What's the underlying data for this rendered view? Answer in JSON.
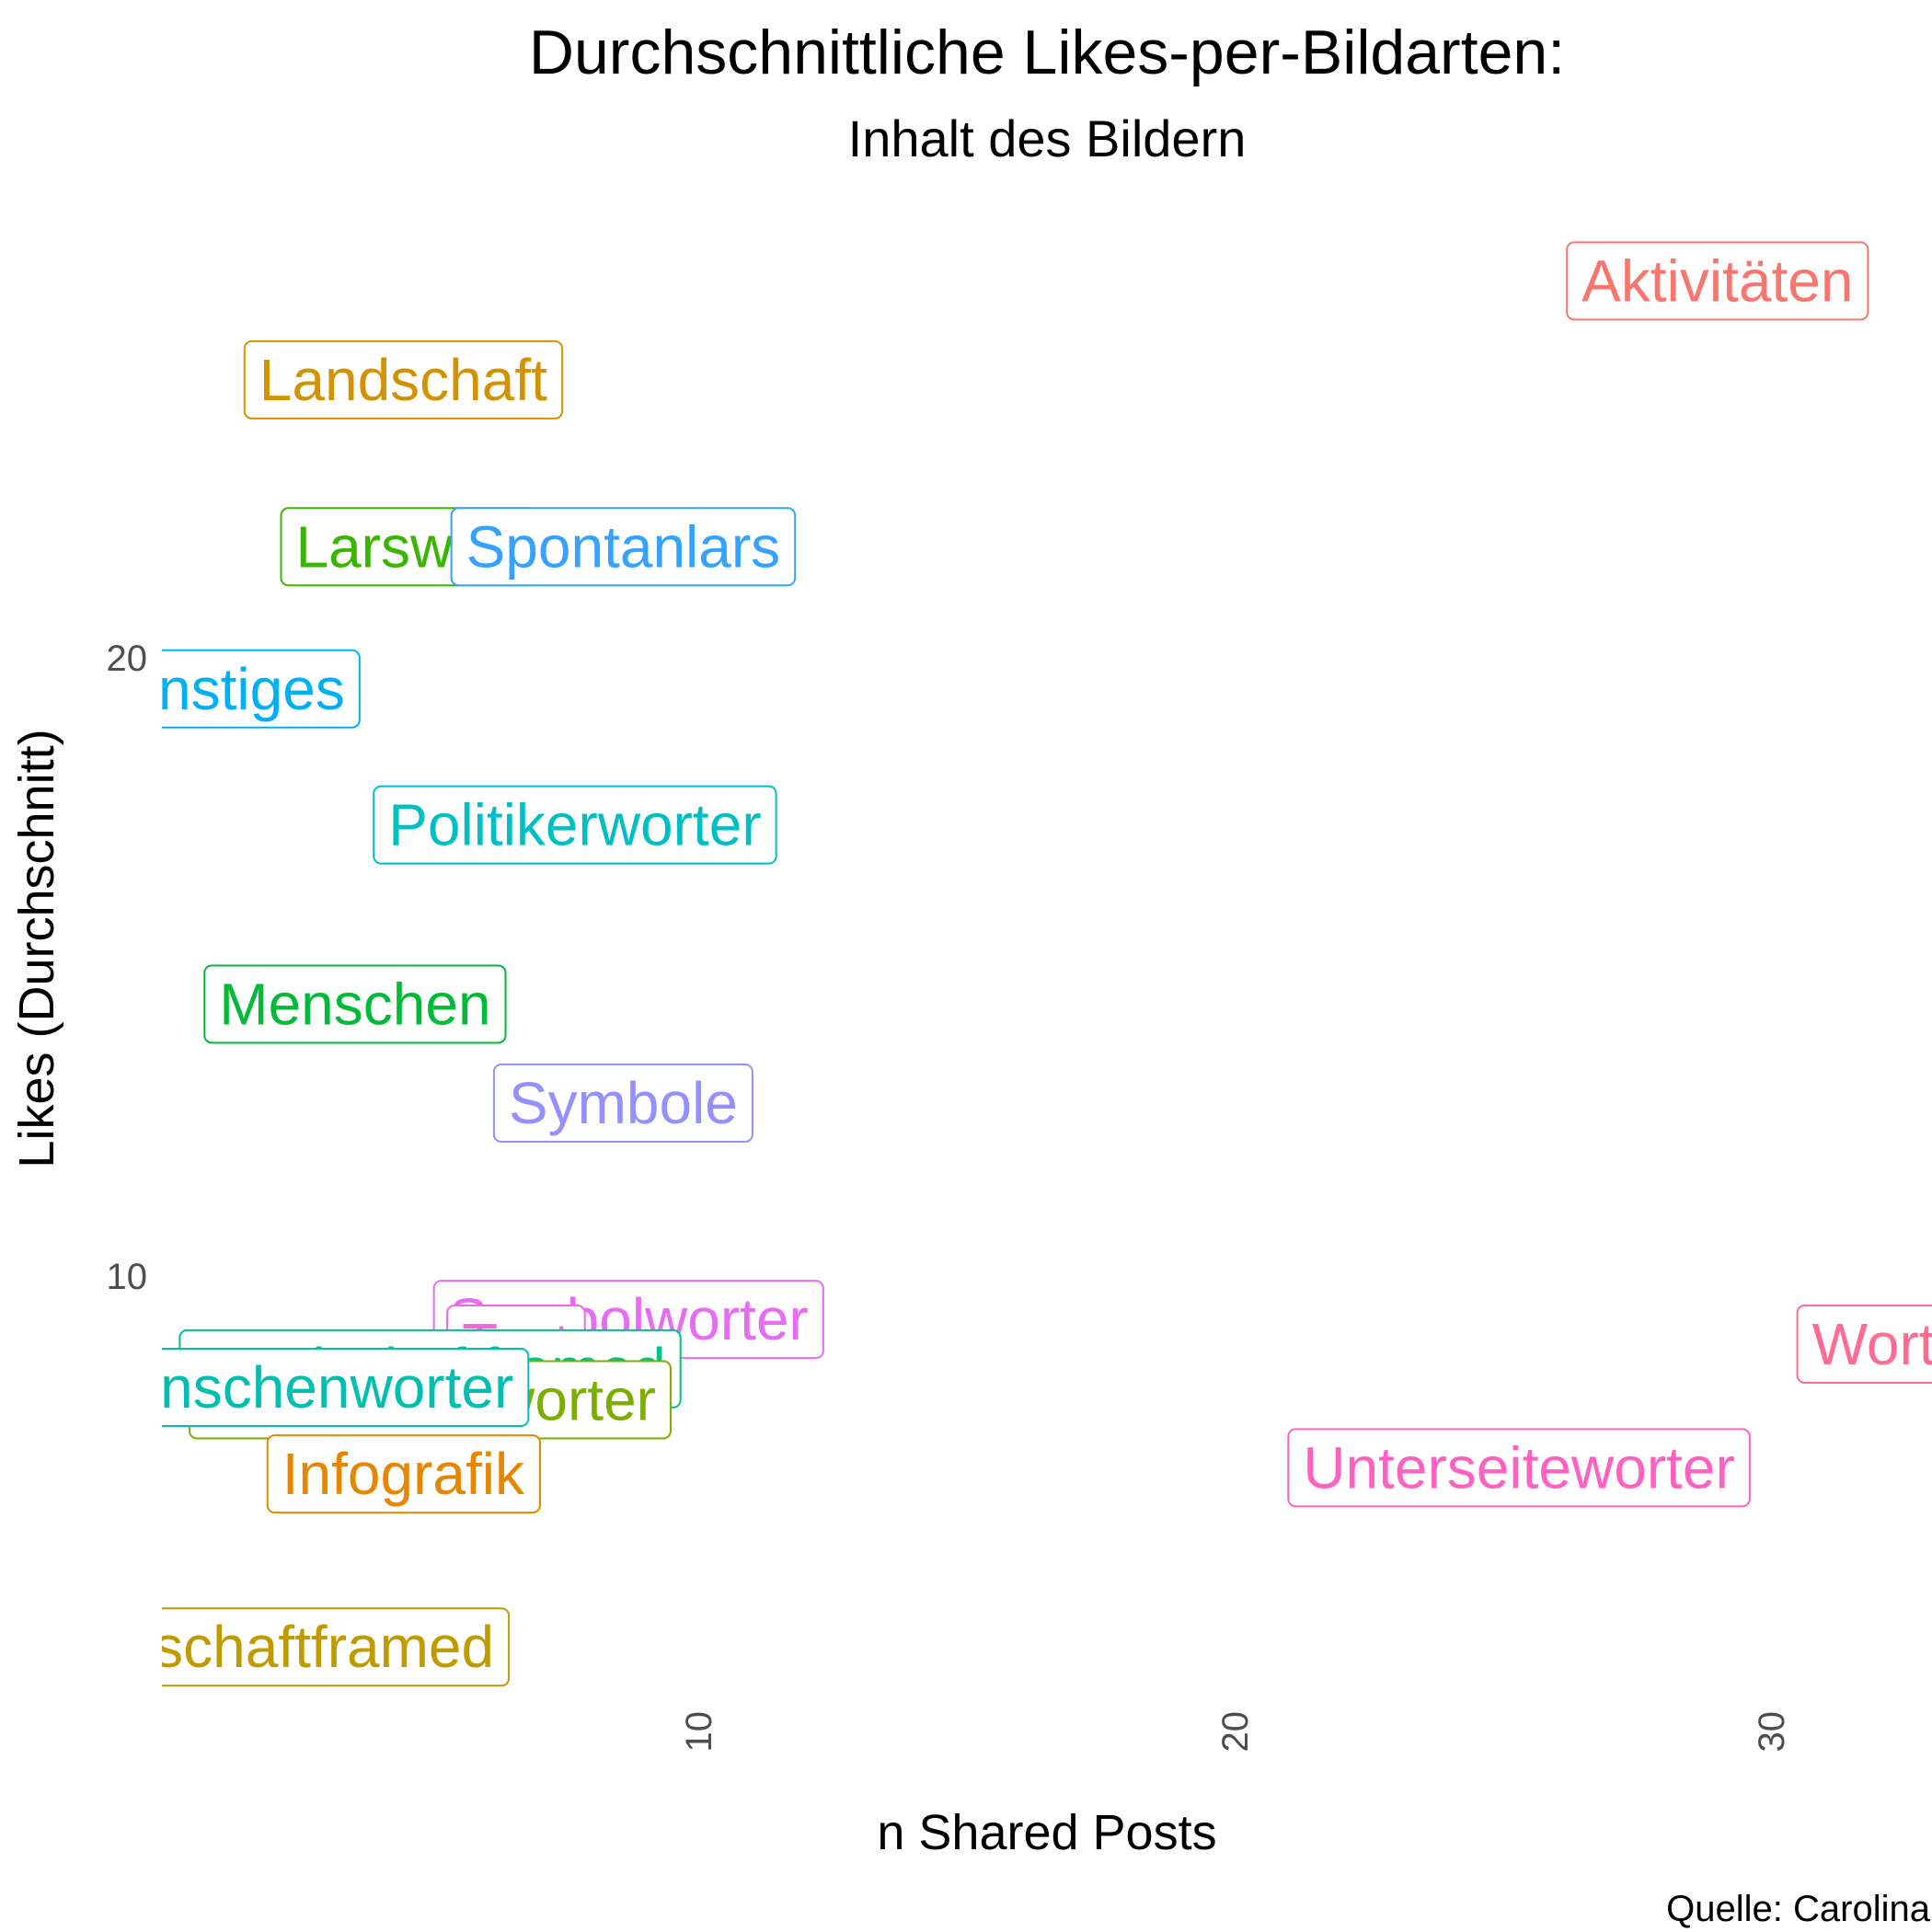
{
  "chart_data": {
    "type": "scatter",
    "title": "Durchschnittliche Likes-per-Bildarten:",
    "subtitle": "Inhalt des Bildern",
    "xlabel": "n Shared Posts",
    "ylabel": "Likes (Durchschnitt)",
    "caption": "Quelle: Carolina",
    "xlim": [
      0,
      33
    ],
    "ylim": [
      3.2,
      27.4
    ],
    "xticks": [
      10,
      20,
      30
    ],
    "yticks": [
      10,
      20
    ],
    "grid": false,
    "legend": "none",
    "points": [
      {
        "label": "Aktivitäten",
        "x": 29,
        "y": 26.1,
        "color": "#F8766D"
      },
      {
        "label": "Landschaft",
        "x": 4.5,
        "y": 24.5,
        "color": "#D39200"
      },
      {
        "label": "Larswort",
        "x": 4.6,
        "y": 21.8,
        "color": "#39B600"
      },
      {
        "label": "Spontanlars",
        "x": 8.6,
        "y": 21.8,
        "color": "#35A2FF"
      },
      {
        "label": "Sonstiges",
        "x": 1.0,
        "y": 19.5,
        "color": "#00B0F6"
      },
      {
        "label": "Politikerworter",
        "x": 7.7,
        "y": 17.3,
        "color": "#00BFC4"
      },
      {
        "label": "Menschen",
        "x": 3.6,
        "y": 14.4,
        "color": "#00BA38"
      },
      {
        "label": "Symbole",
        "x": 8.6,
        "y": 12.8,
        "color": "#9590FF"
      },
      {
        "label": "Symbolworter",
        "x": 8.7,
        "y": 9.3,
        "color": "#E76BF3"
      },
      {
        "label": "Text",
        "x": 6.6,
        "y": 8.9,
        "color": "#F564E3"
      },
      {
        "label": "Landschaftframed",
        "x": 5.0,
        "y": 8.5,
        "color": "#00C08B"
      },
      {
        "label": "Landschaftworter",
        "x": 5.0,
        "y": 8.0,
        "color": "#7CAE00"
      },
      {
        "label": "Menschenworter",
        "x": 2.5,
        "y": 8.2,
        "color": "#00BFB0"
      },
      {
        "label": "Infografik",
        "x": 4.5,
        "y": 6.8,
        "color": "#E58700"
      },
      {
        "label": "Worter",
        "x": 32.4,
        "y": 8.9,
        "color": "#FF6C91"
      },
      {
        "label": "Unterseiteworter",
        "x": 25.3,
        "y": 6.9,
        "color": "#FF61C3"
      },
      {
        "label": "Landschaftframed",
        "x": 1.8,
        "y": 4.0,
        "color": "#C09B00"
      }
    ]
  }
}
